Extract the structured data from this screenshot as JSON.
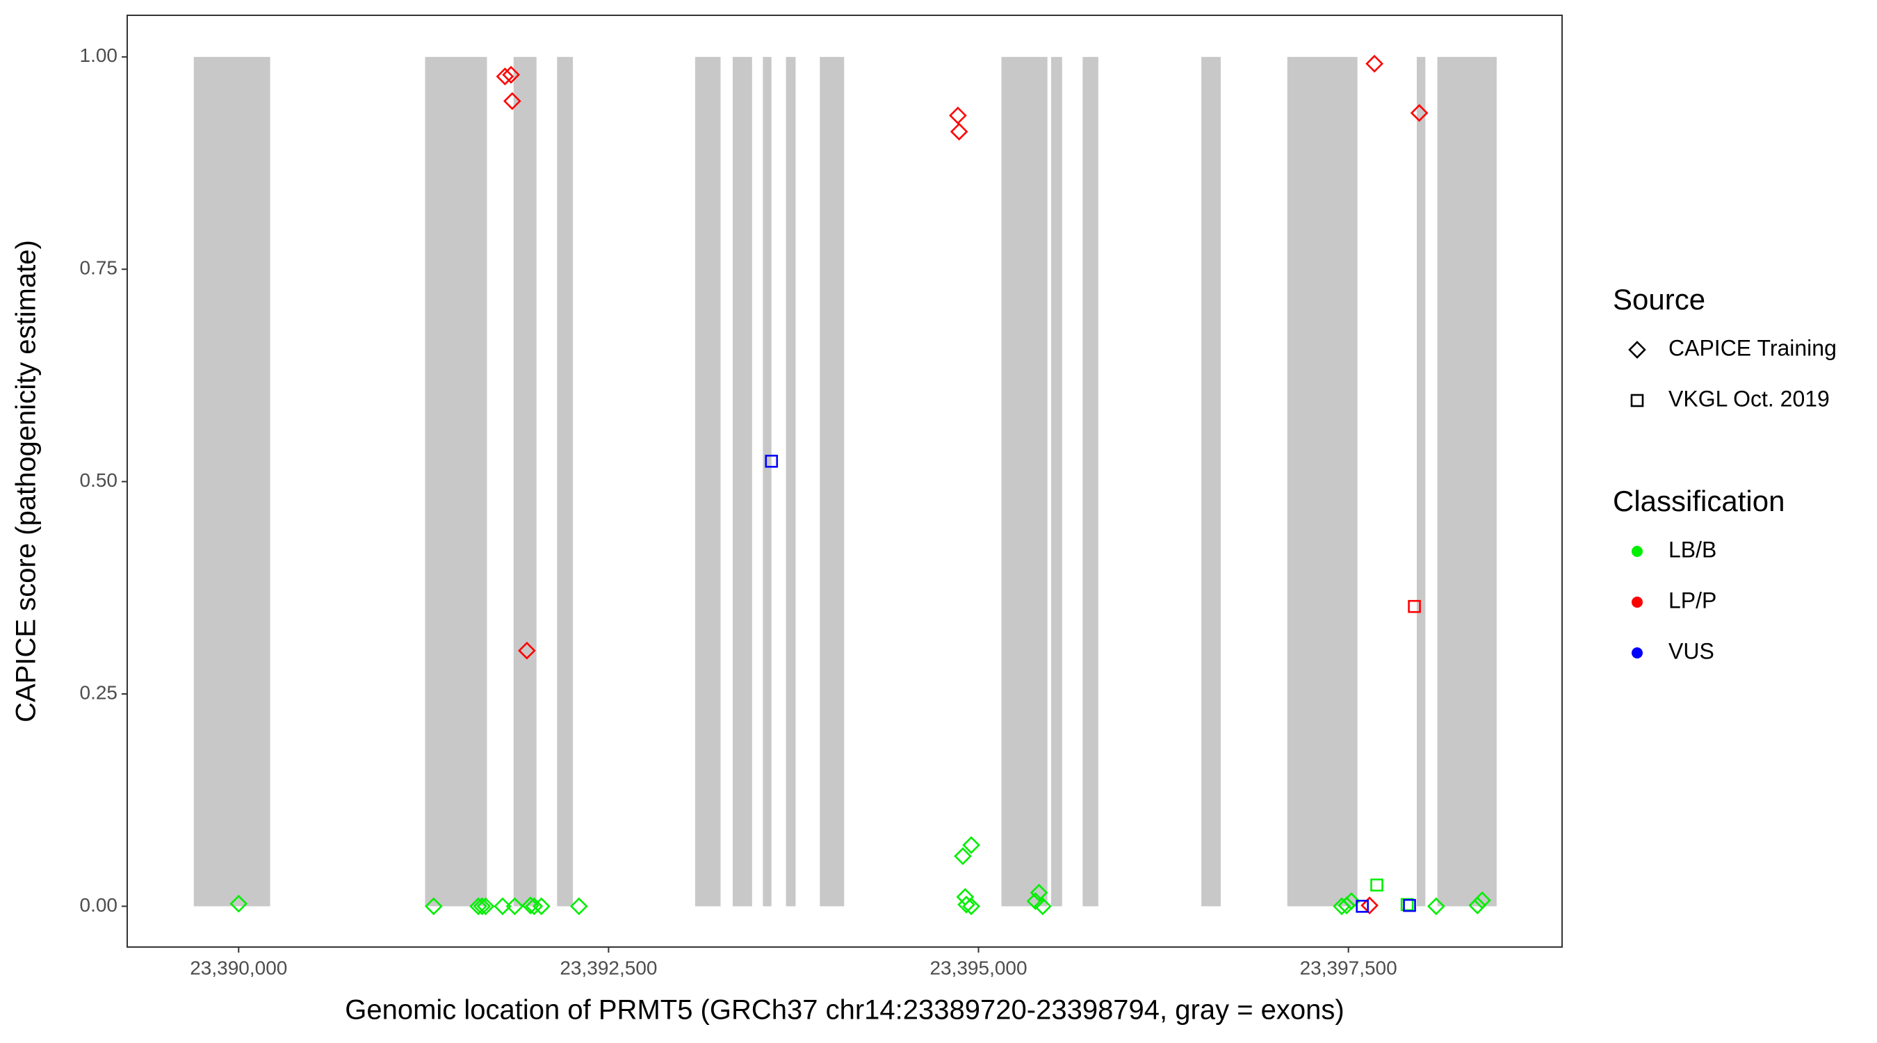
{
  "chart_data": {
    "type": "scatter",
    "x_label": "Genomic location of PRMT5 (GRCh37 chr14:23389720-23398794, gray = exons)",
    "y_label": "CAPICE score (pathogenicity estimate)",
    "xlim": [
      23389247,
      23398944
    ],
    "ylim": [
      -0.048,
      1.049
    ],
    "xticks": [
      {
        "value": 23390000,
        "label": "23,390,000"
      },
      {
        "value": 23392500,
        "label": "23,392,500"
      },
      {
        "value": 23395000,
        "label": "23,395,000"
      },
      {
        "value": 23397500,
        "label": "23,397,500"
      }
    ],
    "yticks": [
      {
        "value": 0,
        "label": "0.00"
      },
      0.25,
      {
        "value": 0.5,
        "label": "0.50"
      },
      0.75,
      {
        "value": 1,
        "label": "1.00"
      }
    ],
    "grid": false,
    "exon_color": "#c8c8c8",
    "exon_y": [
      0,
      1
    ],
    "exons": [
      {
        "start": 23389697,
        "end": 23390213
      },
      {
        "start": 23391260,
        "end": 23391678
      },
      {
        "start": 23391858,
        "end": 23392013
      },
      {
        "start": 23392152,
        "end": 23392259
      },
      {
        "start": 23393085,
        "end": 23393257
      },
      {
        "start": 23393339,
        "end": 23393470
      },
      {
        "start": 23393543,
        "end": 23393601
      },
      {
        "start": 23393699,
        "end": 23393764
      },
      {
        "start": 23393928,
        "end": 23394092
      },
      {
        "start": 23395155,
        "end": 23395466
      },
      {
        "start": 23395491,
        "end": 23395565
      },
      {
        "start": 23395704,
        "end": 23395810
      },
      {
        "start": 23396506,
        "end": 23396637
      },
      {
        "start": 23397087,
        "end": 23397561
      },
      {
        "start": 23397962,
        "end": 23398020
      },
      {
        "start": 23398101,
        "end": 23398502
      }
    ],
    "legends": [
      {
        "title": "Source",
        "entries": [
          {
            "label": "CAPICE Training",
            "shape": "diamond"
          },
          {
            "label": "VKGL Oct. 2019",
            "shape": "square"
          }
        ]
      },
      {
        "title": "Classification",
        "entries": [
          {
            "label": "LB/B",
            "color": "#00ee00"
          },
          {
            "label": "LP/P",
            "color": "#ff0000"
          },
          {
            "label": "VUS",
            "color": "#0000ff"
          }
        ]
      }
    ],
    "series": [
      {
        "source": "CAPICE Training",
        "classification": "LB/B",
        "x": [
          23390000,
          23391318,
          23391620,
          23391645,
          23391669,
          23391784,
          23391866,
          23391972,
          23391997,
          23392046,
          23392300,
          23394894,
          23394951,
          23394910,
          23394918,
          23394951,
          23395385,
          23395409,
          23395434,
          23397455,
          23397488,
          23397520,
          23398093,
          23398372,
          23398404
        ],
        "y": [
          0.003,
          0,
          0,
          0,
          0,
          0,
          0,
          0.001,
          0,
          0,
          0,
          0.059,
          0.072,
          0.011,
          0.002,
          0,
          0.006,
          0.016,
          0,
          0,
          0.001,
          0.006,
          0,
          0.001,
          0.007
        ]
      },
      {
        "source": "CAPICE Training",
        "classification": "LP/P",
        "x": [
          23391800,
          23391841,
          23391849,
          23391948,
          23394861,
          23394869,
          23397676,
          23397979,
          23397643
        ],
        "y": [
          0.977,
          0.979,
          0.948,
          0.301,
          0.931,
          0.912,
          0.992,
          0.934,
          0.001
        ]
      },
      {
        "source": "VKGL Oct. 2019",
        "classification": "LB/B",
        "x": [
          23397692,
          23397897
        ],
        "y": [
          0.025,
          0.002
        ]
      },
      {
        "source": "VKGL Oct. 2019",
        "classification": "LP/P",
        "x": [
          23397946
        ],
        "y": [
          0.353
        ]
      },
      {
        "source": "VKGL Oct. 2019",
        "classification": "VUS",
        "x": [
          23393601,
          23397594,
          23397913
        ],
        "y": [
          0.524,
          0,
          0.001
        ]
      }
    ]
  }
}
